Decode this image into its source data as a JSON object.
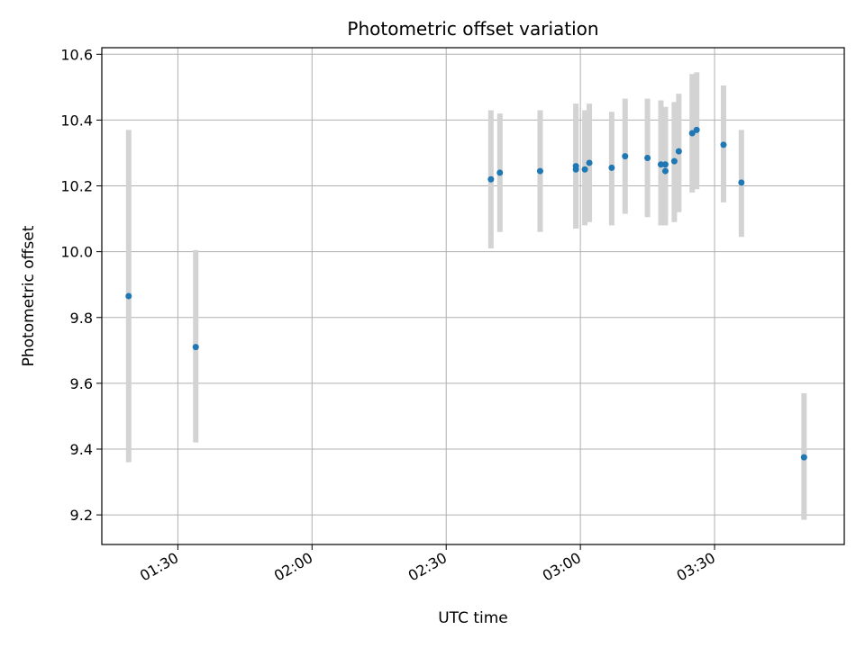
{
  "chart_data": {
    "type": "scatter",
    "title": "Photometric offset variation",
    "xlabel": "UTC time",
    "ylabel": "Photometric offset",
    "x_axis_type": "time",
    "xlim": [
      "01:13",
      "03:59"
    ],
    "ylim": [
      9.11,
      10.62
    ],
    "x_ticks": [
      "01:30",
      "02:00",
      "02:30",
      "03:00",
      "03:30"
    ],
    "y_ticks": [
      "9.2",
      "9.4",
      "9.6",
      "9.8",
      "10.0",
      "10.2",
      "10.4",
      "10.6"
    ],
    "grid": true,
    "error_bar_color": "#d3d3d3",
    "point_color": "#1f77b4",
    "points": [
      {
        "x": "01:19",
        "y": 9.865,
        "ylow": 9.36,
        "yhigh": 10.37
      },
      {
        "x": "01:34",
        "y": 9.71,
        "ylow": 9.42,
        "yhigh": 10.005
      },
      {
        "x": "02:40",
        "y": 10.22,
        "ylow": 10.01,
        "yhigh": 10.43
      },
      {
        "x": "02:42",
        "y": 10.24,
        "ylow": 10.06,
        "yhigh": 10.42
      },
      {
        "x": "02:51",
        "y": 10.245,
        "ylow": 10.06,
        "yhigh": 10.43
      },
      {
        "x": "02:59",
        "y": 10.25,
        "ylow": 10.07,
        "yhigh": 10.435
      },
      {
        "x": "02:59",
        "y": 10.26,
        "ylow": 10.07,
        "yhigh": 10.45
      },
      {
        "x": "03:01",
        "y": 10.25,
        "ylow": 10.08,
        "yhigh": 10.43
      },
      {
        "x": "03:02",
        "y": 10.27,
        "ylow": 10.09,
        "yhigh": 10.45
      },
      {
        "x": "03:07",
        "y": 10.255,
        "ylow": 10.08,
        "yhigh": 10.425
      },
      {
        "x": "03:10",
        "y": 10.29,
        "ylow": 10.115,
        "yhigh": 10.465
      },
      {
        "x": "03:15",
        "y": 10.285,
        "ylow": 10.105,
        "yhigh": 10.465
      },
      {
        "x": "03:18",
        "y": 10.265,
        "ylow": 10.08,
        "yhigh": 10.46
      },
      {
        "x": "03:19",
        "y": 10.245,
        "ylow": 10.08,
        "yhigh": 10.44
      },
      {
        "x": "03:19",
        "y": 10.265,
        "ylow": 10.1,
        "yhigh": 10.43
      },
      {
        "x": "03:21",
        "y": 10.275,
        "ylow": 10.09,
        "yhigh": 10.455
      },
      {
        "x": "03:22",
        "y": 10.305,
        "ylow": 10.12,
        "yhigh": 10.48
      },
      {
        "x": "03:25",
        "y": 10.36,
        "ylow": 10.18,
        "yhigh": 10.54
      },
      {
        "x": "03:26",
        "y": 10.37,
        "ylow": 10.19,
        "yhigh": 10.545
      },
      {
        "x": "03:32",
        "y": 10.325,
        "ylow": 10.15,
        "yhigh": 10.505
      },
      {
        "x": "03:36",
        "y": 10.21,
        "ylow": 10.045,
        "yhigh": 10.37
      },
      {
        "x": "03:50",
        "y": 9.375,
        "ylow": 9.185,
        "yhigh": 9.57
      }
    ]
  }
}
